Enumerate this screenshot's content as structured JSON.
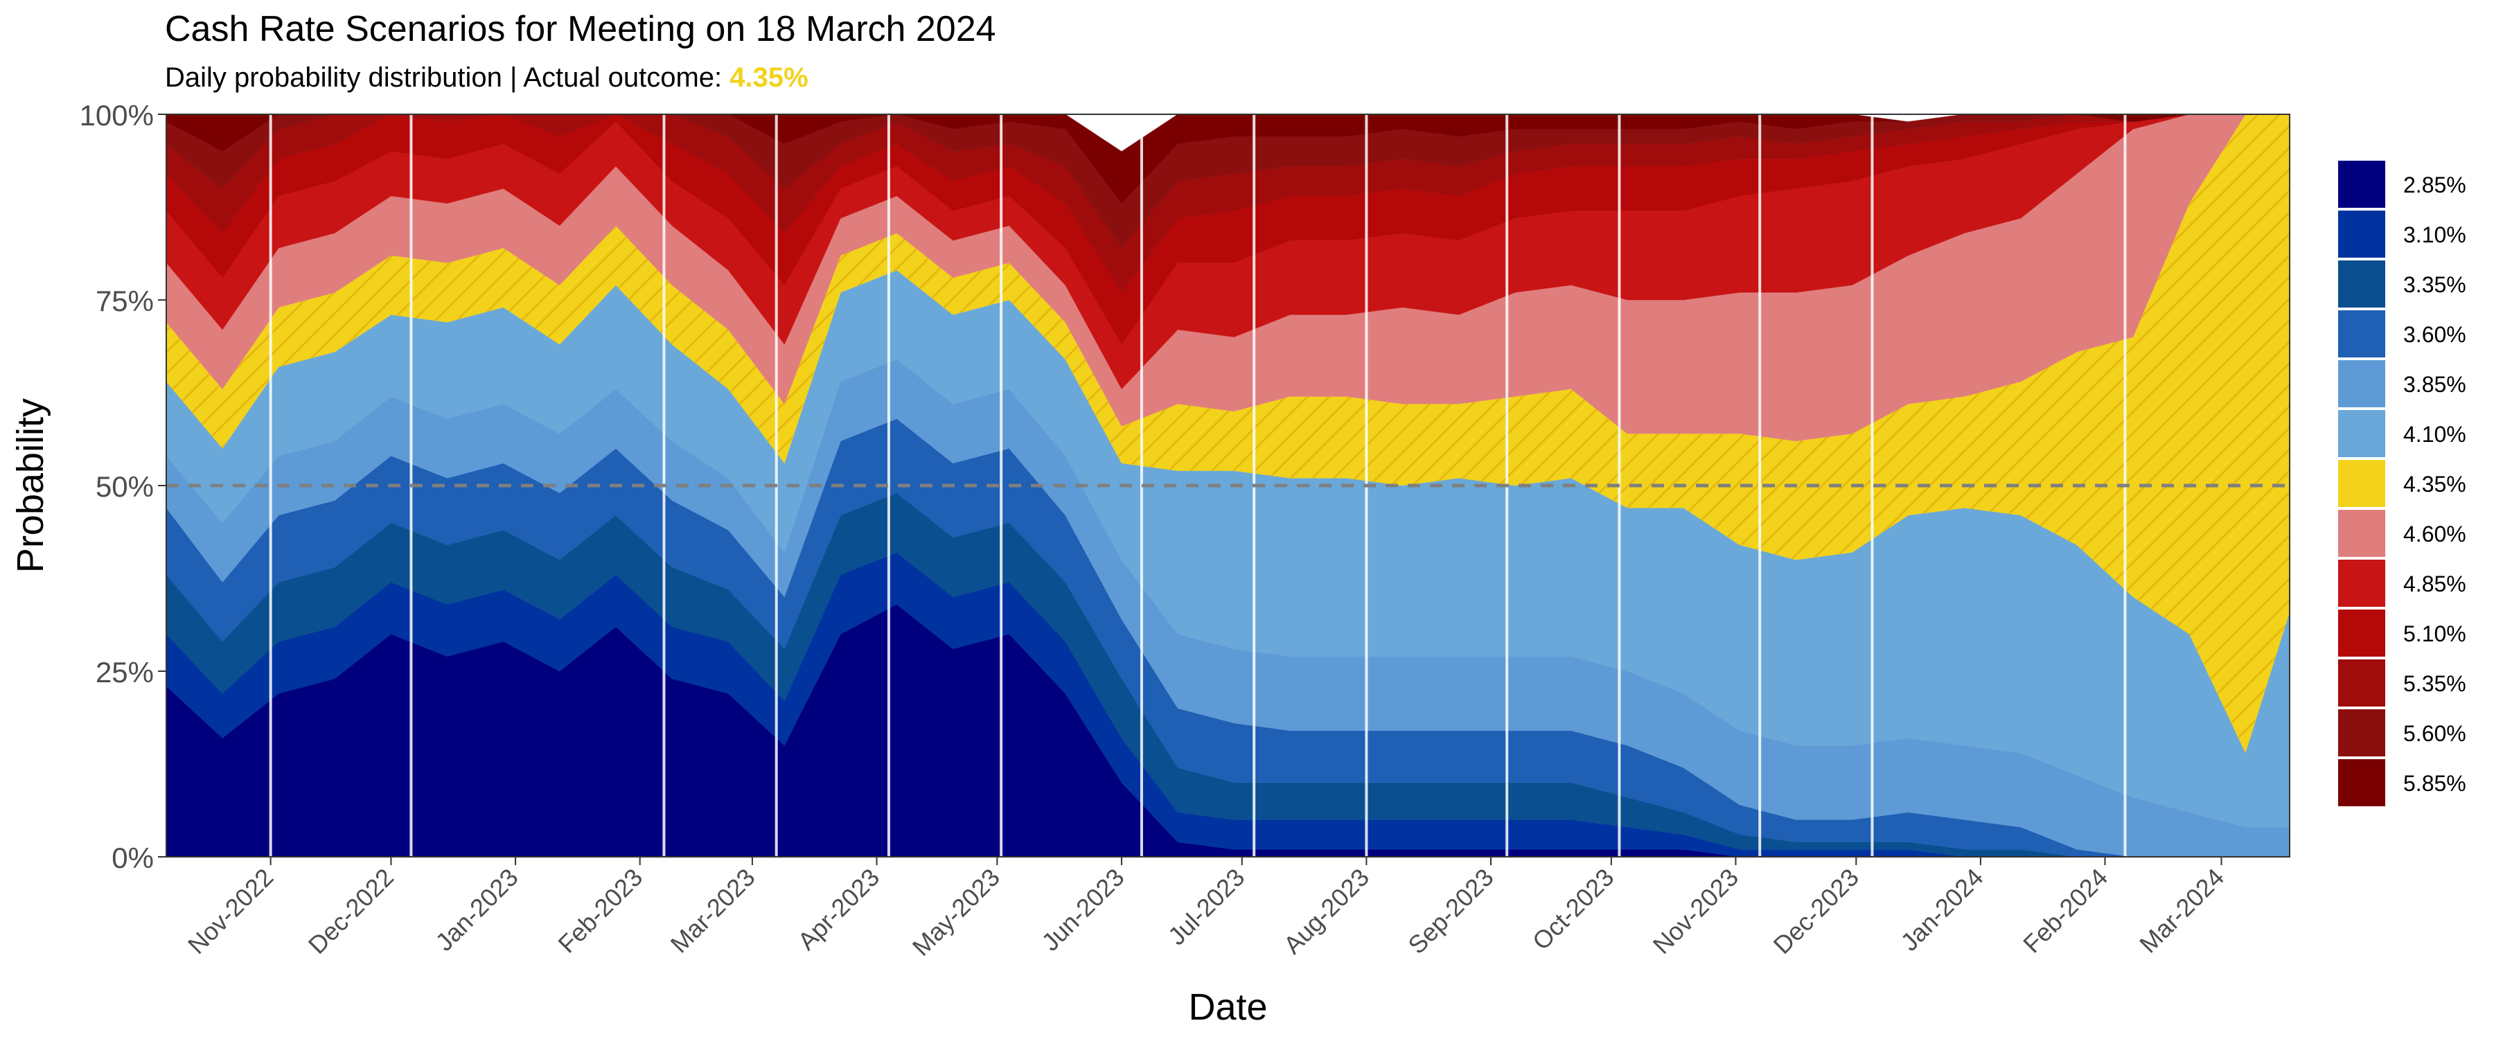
{
  "chart_data": {
    "type": "area",
    "stacked": true,
    "title": "Cash Rate Scenarios for Meeting on 18 March 2024",
    "subtitle_prefix": "Daily probability distribution | Actual outcome: ",
    "subtitle_outcome": "4.35%",
    "xlabel": "Date",
    "ylabel": "Probability",
    "ylim": [
      0,
      1
    ],
    "y_ticks": [
      "0%",
      "25%",
      "50%",
      "75%",
      "100%"
    ],
    "x_range": [
      "2022-10-06",
      "2024-03-18"
    ],
    "x_ticks": [
      {
        "label": "Nov-2022",
        "date": "2022-11-01"
      },
      {
        "label": "Dec-2022",
        "date": "2022-12-01"
      },
      {
        "label": "Jan-2023",
        "date": "2023-01-01"
      },
      {
        "label": "Feb-2023",
        "date": "2023-02-01"
      },
      {
        "label": "Mar-2023",
        "date": "2023-03-01"
      },
      {
        "label": "Apr-2023",
        "date": "2023-04-01"
      },
      {
        "label": "May-2023",
        "date": "2023-05-01"
      },
      {
        "label": "Jun-2023",
        "date": "2023-06-01"
      },
      {
        "label": "Jul-2023",
        "date": "2023-07-01"
      },
      {
        "label": "Aug-2023",
        "date": "2023-08-01"
      },
      {
        "label": "Sep-2023",
        "date": "2023-09-01"
      },
      {
        "label": "Oct-2023",
        "date": "2023-10-01"
      },
      {
        "label": "Nov-2023",
        "date": "2023-11-01"
      },
      {
        "label": "Dec-2023",
        "date": "2023-12-01"
      },
      {
        "label": "Jan-2024",
        "date": "2024-01-01"
      },
      {
        "label": "Feb-2024",
        "date": "2024-02-01"
      },
      {
        "label": "Mar-2024",
        "date": "2024-03-01"
      }
    ],
    "meeting_lines": [
      "2022-11-01",
      "2022-12-06",
      "2023-02-07",
      "2023-03-07",
      "2023-04-04",
      "2023-05-02",
      "2023-06-06",
      "2023-07-04",
      "2023-08-01",
      "2023-09-05",
      "2023-10-03",
      "2023-11-07",
      "2023-12-05",
      "2024-02-06"
    ],
    "reference_line": {
      "y": 0.5,
      "style": "dashed",
      "color": "#7f7f7f"
    },
    "legend_position": "right",
    "highlight_series": "4.35%",
    "highlight_fill": "#F2D21B",
    "dates": [
      "2022-10-06",
      "2022-10-20",
      "2022-11-03",
      "2022-11-17",
      "2022-12-01",
      "2022-12-15",
      "2022-12-29",
      "2023-01-12",
      "2023-01-26",
      "2023-02-09",
      "2023-02-23",
      "2023-03-09",
      "2023-03-23",
      "2023-04-06",
      "2023-04-20",
      "2023-05-04",
      "2023-05-18",
      "2023-06-01",
      "2023-06-15",
      "2023-06-29",
      "2023-07-13",
      "2023-07-27",
      "2023-08-10",
      "2023-08-24",
      "2023-09-07",
      "2023-09-21",
      "2023-10-05",
      "2023-10-19",
      "2023-11-02",
      "2023-11-16",
      "2023-11-30",
      "2023-12-14",
      "2023-12-28",
      "2024-01-11",
      "2024-01-25",
      "2024-02-08",
      "2024-02-22",
      "2024-03-07",
      "2024-03-18"
    ],
    "series": [
      {
        "name": "2.85%",
        "color": "#00007F",
        "values": [
          0.23,
          0.16,
          0.22,
          0.24,
          0.3,
          0.27,
          0.29,
          0.25,
          0.31,
          0.24,
          0.22,
          0.15,
          0.3,
          0.34,
          0.28,
          0.3,
          0.22,
          0.1,
          0.02,
          0.01,
          0.01,
          0.01,
          0.01,
          0.01,
          0.01,
          0.01,
          0.01,
          0.01,
          0.0,
          0.0,
          0.0,
          0.0,
          0.0,
          0.0,
          0.0,
          0.0,
          0.0,
          0.0,
          0.0
        ]
      },
      {
        "name": "3.10%",
        "color": "#0033A0",
        "values": [
          0.07,
          0.06,
          0.07,
          0.07,
          0.07,
          0.07,
          0.07,
          0.07,
          0.07,
          0.07,
          0.07,
          0.06,
          0.08,
          0.07,
          0.07,
          0.07,
          0.07,
          0.06,
          0.04,
          0.04,
          0.04,
          0.04,
          0.04,
          0.04,
          0.04,
          0.04,
          0.03,
          0.02,
          0.01,
          0.01,
          0.01,
          0.01,
          0.0,
          0.0,
          0.0,
          0.0,
          0.0,
          0.0,
          0.0
        ]
      },
      {
        "name": "3.35%",
        "color": "#0A4F8F",
        "values": [
          0.08,
          0.07,
          0.08,
          0.08,
          0.08,
          0.08,
          0.08,
          0.08,
          0.08,
          0.08,
          0.07,
          0.07,
          0.08,
          0.08,
          0.08,
          0.08,
          0.08,
          0.08,
          0.06,
          0.05,
          0.05,
          0.05,
          0.05,
          0.05,
          0.05,
          0.05,
          0.04,
          0.03,
          0.02,
          0.01,
          0.01,
          0.01,
          0.01,
          0.01,
          0.0,
          0.0,
          0.0,
          0.0,
          0.0
        ]
      },
      {
        "name": "3.60%",
        "color": "#1F5FB4",
        "values": [
          0.09,
          0.08,
          0.09,
          0.09,
          0.09,
          0.09,
          0.09,
          0.09,
          0.09,
          0.09,
          0.08,
          0.07,
          0.1,
          0.1,
          0.1,
          0.1,
          0.09,
          0.08,
          0.08,
          0.08,
          0.07,
          0.07,
          0.07,
          0.07,
          0.07,
          0.07,
          0.07,
          0.06,
          0.04,
          0.03,
          0.03,
          0.04,
          0.04,
          0.03,
          0.01,
          0.0,
          0.0,
          0.0,
          0.0
        ]
      },
      {
        "name": "3.85%",
        "color": "#5E9BD6",
        "values": [
          0.07,
          0.08,
          0.08,
          0.08,
          0.08,
          0.08,
          0.08,
          0.08,
          0.08,
          0.08,
          0.07,
          0.06,
          0.08,
          0.08,
          0.08,
          0.08,
          0.08,
          0.08,
          0.1,
          0.1,
          0.1,
          0.1,
          0.1,
          0.1,
          0.1,
          0.1,
          0.1,
          0.1,
          0.1,
          0.1,
          0.1,
          0.1,
          0.1,
          0.1,
          0.1,
          0.08,
          0.06,
          0.04,
          0.04
        ]
      },
      {
        "name": "4.10%",
        "color": "#69A8D9",
        "values": [
          0.1,
          0.1,
          0.12,
          0.12,
          0.11,
          0.13,
          0.13,
          0.12,
          0.14,
          0.13,
          0.12,
          0.12,
          0.12,
          0.12,
          0.12,
          0.12,
          0.13,
          0.13,
          0.22,
          0.24,
          0.24,
          0.24,
          0.23,
          0.24,
          0.23,
          0.24,
          0.22,
          0.25,
          0.25,
          0.25,
          0.26,
          0.3,
          0.32,
          0.32,
          0.31,
          0.27,
          0.24,
          0.1,
          0.29
        ]
      },
      {
        "name": "4.35%",
        "color": "#F2D21B",
        "values": [
          0.08,
          0.08,
          0.08,
          0.08,
          0.08,
          0.08,
          0.08,
          0.08,
          0.08,
          0.08,
          0.08,
          0.08,
          0.05,
          0.05,
          0.05,
          0.05,
          0.05,
          0.05,
          0.09,
          0.08,
          0.11,
          0.11,
          0.11,
          0.1,
          0.12,
          0.12,
          0.1,
          0.1,
          0.15,
          0.16,
          0.16,
          0.15,
          0.15,
          0.18,
          0.26,
          0.35,
          0.58,
          0.86,
          0.67
        ]
      },
      {
        "name": "4.60%",
        "color": "#E07E7E",
        "values": [
          0.08,
          0.08,
          0.08,
          0.08,
          0.08,
          0.08,
          0.08,
          0.08,
          0.08,
          0.08,
          0.08,
          0.08,
          0.05,
          0.05,
          0.05,
          0.05,
          0.05,
          0.05,
          0.1,
          0.1,
          0.11,
          0.11,
          0.13,
          0.12,
          0.14,
          0.14,
          0.18,
          0.18,
          0.19,
          0.2,
          0.2,
          0.2,
          0.22,
          0.22,
          0.24,
          0.28,
          0.12,
          0.0,
          0.0
        ]
      },
      {
        "name": "4.85%",
        "color": "#C81414",
        "values": [
          0.07,
          0.07,
          0.07,
          0.07,
          0.06,
          0.06,
          0.06,
          0.07,
          0.06,
          0.06,
          0.07,
          0.08,
          0.04,
          0.04,
          0.04,
          0.04,
          0.05,
          0.06,
          0.09,
          0.1,
          0.1,
          0.1,
          0.1,
          0.1,
          0.1,
          0.1,
          0.12,
          0.12,
          0.13,
          0.14,
          0.14,
          0.12,
          0.1,
          0.1,
          0.06,
          0.01,
          0.0,
          0.0,
          0.0
        ]
      },
      {
        "name": "5.10%",
        "color": "#B50808",
        "values": [
          0.05,
          0.06,
          0.05,
          0.05,
          0.05,
          0.05,
          0.05,
          0.05,
          0.04,
          0.05,
          0.06,
          0.07,
          0.03,
          0.03,
          0.04,
          0.04,
          0.06,
          0.07,
          0.06,
          0.07,
          0.06,
          0.06,
          0.06,
          0.06,
          0.06,
          0.06,
          0.06,
          0.06,
          0.05,
          0.04,
          0.04,
          0.03,
          0.03,
          0.02,
          0.01,
          0.0,
          0.0,
          0.0,
          0.0
        ]
      },
      {
        "name": "5.35%",
        "color": "#A00B0B",
        "values": [
          0.04,
          0.06,
          0.04,
          0.04,
          0.04,
          0.04,
          0.04,
          0.04,
          0.03,
          0.04,
          0.05,
          0.06,
          0.03,
          0.03,
          0.04,
          0.03,
          0.05,
          0.06,
          0.05,
          0.05,
          0.04,
          0.04,
          0.04,
          0.04,
          0.03,
          0.03,
          0.03,
          0.03,
          0.03,
          0.02,
          0.02,
          0.02,
          0.02,
          0.01,
          0.01,
          0.0,
          0.0,
          0.0,
          0.0
        ]
      },
      {
        "name": "5.60%",
        "color": "#8C0F0F",
        "values": [
          0.03,
          0.05,
          0.03,
          0.03,
          0.03,
          0.03,
          0.03,
          0.03,
          0.02,
          0.03,
          0.05,
          0.06,
          0.03,
          0.02,
          0.03,
          0.03,
          0.05,
          0.06,
          0.05,
          0.05,
          0.04,
          0.04,
          0.04,
          0.04,
          0.03,
          0.02,
          0.02,
          0.02,
          0.02,
          0.02,
          0.02,
          0.01,
          0.01,
          0.01,
          0.0,
          0.0,
          0.0,
          0.0,
          0.0
        ]
      },
      {
        "name": "5.85%",
        "color": "#7A0000",
        "values": [
          0.01,
          0.05,
          0.03,
          0.02,
          0.03,
          0.02,
          0.02,
          0.04,
          0.02,
          0.03,
          0.06,
          0.04,
          0.01,
          0.0,
          0.02,
          0.01,
          0.02,
          0.07,
          0.04,
          0.03,
          0.03,
          0.03,
          0.02,
          0.03,
          0.02,
          0.02,
          0.02,
          0.02,
          0.01,
          0.02,
          0.01,
          0.0,
          0.0,
          0.0,
          0.0,
          0.01,
          0.0,
          0.0,
          0.0
        ]
      }
    ]
  }
}
